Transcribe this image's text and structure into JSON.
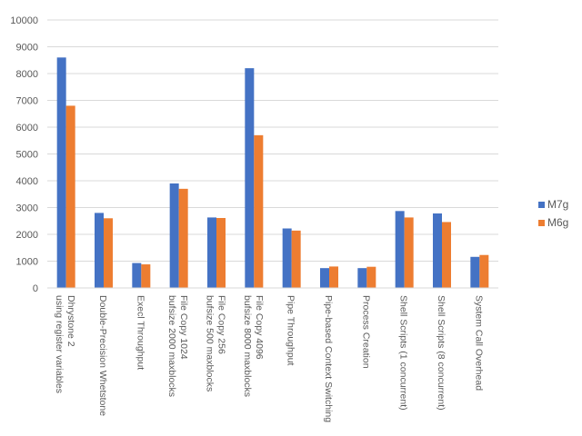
{
  "chart_data": {
    "type": "bar",
    "title": "",
    "xlabel": "",
    "ylabel": "",
    "ylim": [
      0,
      10000
    ],
    "yticks": [
      0,
      1000,
      2000,
      3000,
      4000,
      5000,
      6000,
      7000,
      8000,
      9000,
      10000
    ],
    "grid": "horizontal",
    "legend_position": "right",
    "categories": [
      [
        "Dhrystone 2",
        "using register variables"
      ],
      [
        "Double-Precision Whetstone"
      ],
      [
        "Execl Throughput"
      ],
      [
        "File Copy 1024",
        "bufsize 2000 maxblocks"
      ],
      [
        "File Copy 256",
        "bufsize 500 maxblocks"
      ],
      [
        "File Copy 4096",
        "bufsize 8000 maxblocks"
      ],
      [
        "Pipe Throughput"
      ],
      [
        "Pipe-based Context Switching"
      ],
      [
        "Process Creation"
      ],
      [
        "Shell Scripts (1 concurrent)"
      ],
      [
        "Shell Scripts (8 concurrent)"
      ],
      [
        "System Call Overhead"
      ]
    ],
    "series": [
      {
        "name": "M7g",
        "color": "#4472C4",
        "values": [
          8600,
          2800,
          930,
          3900,
          2630,
          8200,
          2220,
          740,
          740,
          2870,
          2780,
          1160
        ]
      },
      {
        "name": "M6g",
        "color": "#ED7D31",
        "values": [
          6800,
          2600,
          880,
          3700,
          2610,
          5700,
          2140,
          800,
          790,
          2630,
          2460,
          1230
        ]
      }
    ]
  }
}
